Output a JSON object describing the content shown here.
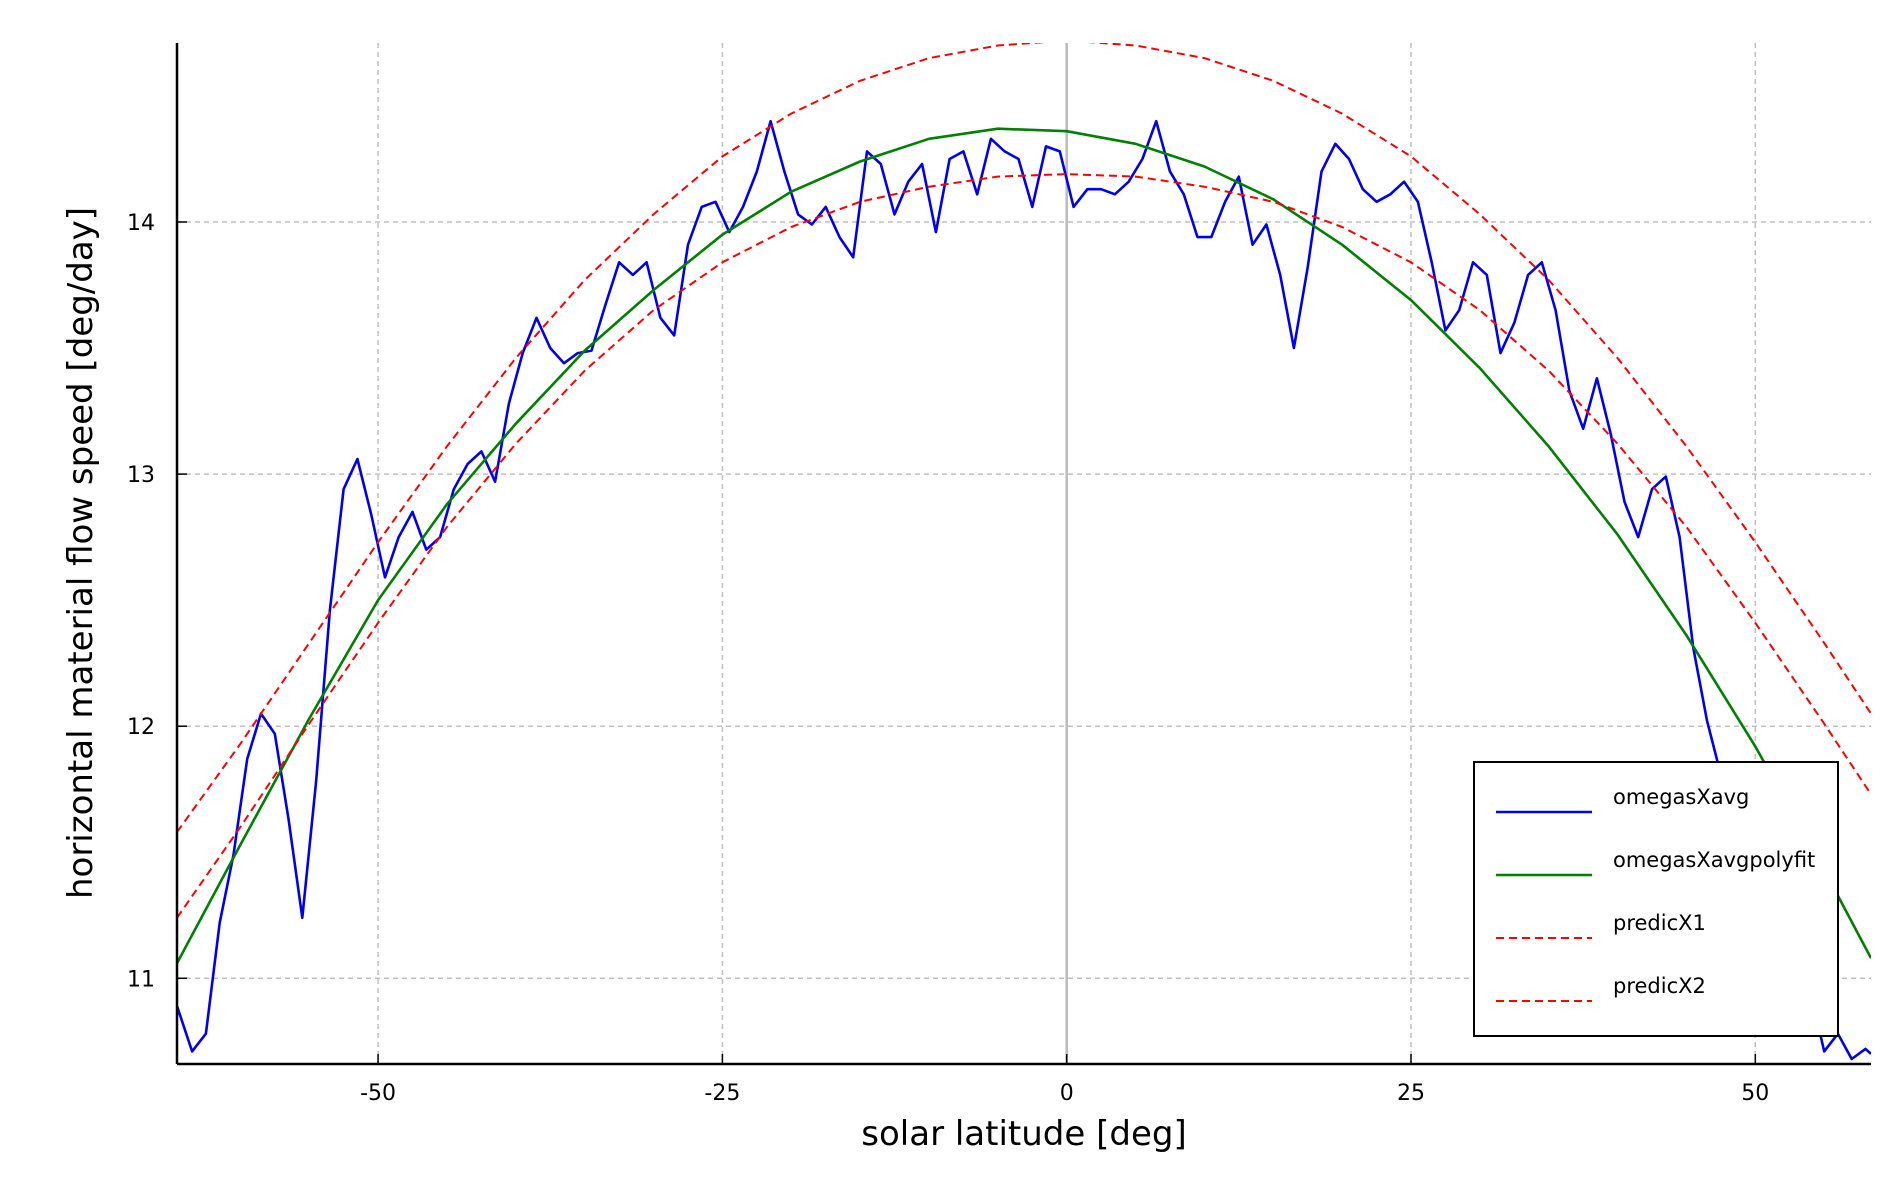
{
  "chart_data": {
    "type": "line",
    "x_label": "solar latitude [deg]",
    "y_label": "horizontal material flow speed [deg/day]",
    "xlim": [
      -64.6,
      58.4
    ],
    "ylim": [
      10.66,
      14.71
    ],
    "xticks": [
      -50,
      -25,
      0,
      25,
      50
    ],
    "yticks": [
      11,
      12,
      13,
      14
    ],
    "grid": true,
    "legend": "lower right",
    "series": [
      {
        "name": "omegasXavg",
        "color": "#0000ee",
        "style": "solid",
        "x": [
          -64.6,
          -63.5,
          -62.5,
          -61.5,
          -60.5,
          -59.5,
          -58.5,
          -57.5,
          -56.5,
          -55.5,
          -54.5,
          -53.5,
          -52.5,
          -51.5,
          -50.5,
          -49.5,
          -48.5,
          -47.5,
          -46.5,
          -45.5,
          -44.5,
          -43.5,
          -42.5,
          -41.5,
          -40.5,
          -39.5,
          -38.5,
          -37.5,
          -36.5,
          -35.5,
          -34.5,
          -33.5,
          -32.5,
          -31.5,
          -30.5,
          -29.5,
          -28.5,
          -27.5,
          -26.5,
          -25.5,
          -24.5,
          -23.5,
          -22.5,
          -21.5,
          -20.5,
          -19.5,
          -18.5,
          -17.5,
          -16.5,
          -15.5,
          -14.5,
          -13.5,
          -12.5,
          -11.5,
          -10.5,
          -9.5,
          -8.5,
          -7.5,
          -6.5,
          -5.5,
          -4.5,
          -3.5,
          -2.5,
          -1.5,
          -0.5,
          0.5,
          1.5,
          2.5,
          3.5,
          4.5,
          5.5,
          6.5,
          7.5,
          8.5,
          9.5,
          10.5,
          11.5,
          12.5,
          13.5,
          14.5,
          15.5,
          16.5,
          17.5,
          18.5,
          19.5,
          20.5,
          21.5,
          22.5,
          23.5,
          24.5,
          25.5,
          26.5,
          27.5,
          28.5,
          29.5,
          30.5,
          31.5,
          32.5,
          33.5,
          34.5,
          35.5,
          36.5,
          37.5,
          38.5,
          39.5,
          40.5,
          41.5,
          42.5,
          43.5,
          44.5,
          45.5,
          46.5,
          48,
          50,
          52,
          53,
          54,
          55,
          56,
          57,
          58,
          58.4
        ],
        "values": [
          10.89,
          10.71,
          10.78,
          11.22,
          11.49,
          11.87,
          12.05,
          11.97,
          11.63,
          11.24,
          11.78,
          12.46,
          12.94,
          13.06,
          12.84,
          12.59,
          12.75,
          12.85,
          12.7,
          12.75,
          12.94,
          13.04,
          13.09,
          12.97,
          13.28,
          13.48,
          13.62,
          13.5,
          13.44,
          13.48,
          13.49,
          13.67,
          13.84,
          13.79,
          13.84,
          13.62,
          13.55,
          13.91,
          14.06,
          14.08,
          13.96,
          14.06,
          14.2,
          14.4,
          14.2,
          14.03,
          13.99,
          14.06,
          13.94,
          13.86,
          14.28,
          14.23,
          14.03,
          14.16,
          14.23,
          13.96,
          14.25,
          14.28,
          14.11,
          14.33,
          14.28,
          14.25,
          14.06,
          14.3,
          14.28,
          14.06,
          14.13,
          14.13,
          14.11,
          14.16,
          14.25,
          14.4,
          14.2,
          14.11,
          13.94,
          13.94,
          14.08,
          14.18,
          13.91,
          13.99,
          13.79,
          13.5,
          13.82,
          14.2,
          14.31,
          14.25,
          14.13,
          14.08,
          14.11,
          14.16,
          14.08,
          13.84,
          13.57,
          13.65,
          13.84,
          13.79,
          13.48,
          13.6,
          13.79,
          13.84,
          13.65,
          13.33,
          13.18,
          13.38,
          13.16,
          12.89,
          12.75,
          12.94,
          12.99,
          12.75,
          12.31,
          12.02,
          11.7,
          11.4,
          11.15,
          11.0,
          10.95,
          10.71,
          10.78,
          10.68,
          10.72,
          10.7
        ]
      },
      {
        "name": "omegasXavgpolyfit",
        "color": "#008000",
        "style": "solid",
        "x": [
          -64.6,
          -60,
          -55,
          -50,
          -45,
          -40,
          -35,
          -30,
          -25,
          -20,
          -15,
          -10,
          -5,
          0,
          5,
          10,
          15,
          20,
          25,
          30,
          35,
          40,
          45,
          50,
          55,
          58.4
        ],
        "values": [
          11.06,
          11.53,
          12.03,
          12.5,
          12.88,
          13.2,
          13.49,
          13.73,
          13.95,
          14.12,
          14.24,
          14.33,
          14.37,
          14.36,
          14.31,
          14.22,
          14.09,
          13.91,
          13.69,
          13.42,
          13.11,
          12.76,
          12.36,
          11.92,
          11.43,
          11.08
        ]
      },
      {
        "name": "predicX1",
        "color": "#ff0000",
        "style": "dashed",
        "x": [
          -64.6,
          -60,
          -55,
          -50,
          -45,
          -40,
          -35,
          -30,
          -25,
          -20,
          -15,
          -10,
          -5,
          0,
          5,
          10,
          15,
          20,
          25,
          30,
          35,
          40,
          45,
          50,
          55,
          58.4
        ],
        "values": [
          11.58,
          11.93,
          12.33,
          12.73,
          13.11,
          13.46,
          13.77,
          14.03,
          14.26,
          14.43,
          14.56,
          14.65,
          14.7,
          14.72,
          14.7,
          14.65,
          14.56,
          14.43,
          14.26,
          14.03,
          13.77,
          13.46,
          13.11,
          12.73,
          12.33,
          12.05
        ]
      },
      {
        "name": "predicX2",
        "color": "#ff0000",
        "style": "dashed",
        "x": [
          -64.6,
          -60,
          -55,
          -50,
          -45,
          -40,
          -35,
          -30,
          -25,
          -20,
          -15,
          -10,
          -5,
          0,
          5,
          10,
          15,
          20,
          25,
          30,
          35,
          40,
          45,
          50,
          55,
          58.4
        ],
        "values": [
          11.24,
          11.6,
          12.01,
          12.41,
          12.79,
          13.12,
          13.41,
          13.65,
          13.84,
          13.98,
          14.08,
          14.14,
          14.18,
          14.19,
          14.18,
          14.14,
          14.08,
          13.98,
          13.84,
          13.65,
          13.41,
          13.12,
          12.79,
          12.41,
          12.01,
          11.73
        ]
      }
    ]
  }
}
